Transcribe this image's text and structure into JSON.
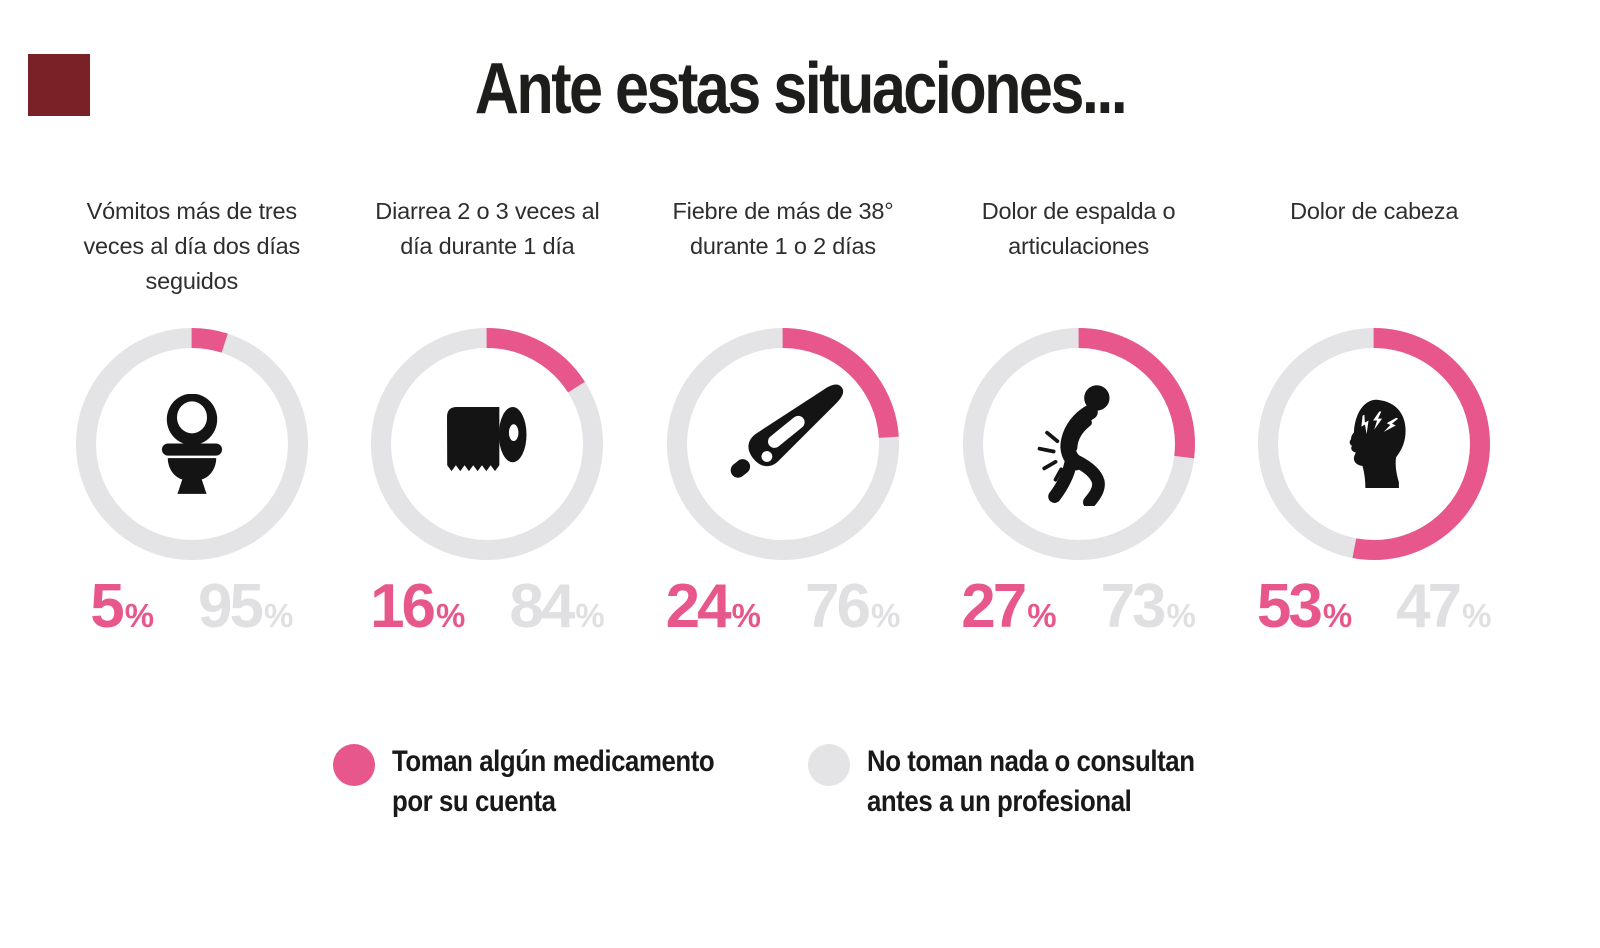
{
  "title": "Ante estas situaciones...",
  "brand_square": {
    "color": "#7a2127"
  },
  "chart_data": {
    "type": "donut",
    "unit": "%",
    "title": "Ante estas situaciones...",
    "colors": {
      "medication": "#e8578c",
      "none": "#e4e4e6",
      "number_gray": "#e0e0e2",
      "icon": "#141414",
      "label_text": "#2e2e2e"
    },
    "legend": [
      {
        "name": "medication",
        "color": "#e8578c",
        "lines": [
          "Toman algún medicamento",
          "por su cuenta"
        ],
        "label": "Toman algún medicamento por su cuenta"
      },
      {
        "name": "none",
        "color": "#e4e4e6",
        "lines": [
          "No toman nada o consultan",
          "antes a un profesional"
        ],
        "label": "No toman nada o consultan antes a un profesional"
      }
    ],
    "items": [
      {
        "label": "Vómitos más de tres veces al día dos días seguidos",
        "label_lines": [
          "Vómitos más de tres",
          "veces al día dos días",
          "seguidos"
        ],
        "icon": "toilet-icon",
        "medication_pct": 5,
        "none_pct": 95
      },
      {
        "label": "Diarrea 2 o 3 veces al día durante 1 día",
        "label_lines": [
          "Diarrea 2 o 3 veces al",
          "día durante 1 día"
        ],
        "icon": "toilet-paper-icon",
        "medication_pct": 16,
        "none_pct": 84
      },
      {
        "label": "Fiebre de más de 38° durante 1 o 2 días",
        "label_lines": [
          "Fiebre de más de 38°",
          "durante 1 o 2 días"
        ],
        "icon": "thermometer-icon",
        "medication_pct": 24,
        "none_pct": 76
      },
      {
        "label": "Dolor de espalda o articulaciones",
        "label_lines": [
          "Dolor de espalda o",
          "articulaciones"
        ],
        "icon": "back-pain-icon",
        "medication_pct": 27,
        "none_pct": 73
      },
      {
        "label": "Dolor de cabeza",
        "label_lines": [
          "Dolor de cabeza"
        ],
        "icon": "headache-icon",
        "medication_pct": 53,
        "none_pct": 47
      }
    ]
  }
}
